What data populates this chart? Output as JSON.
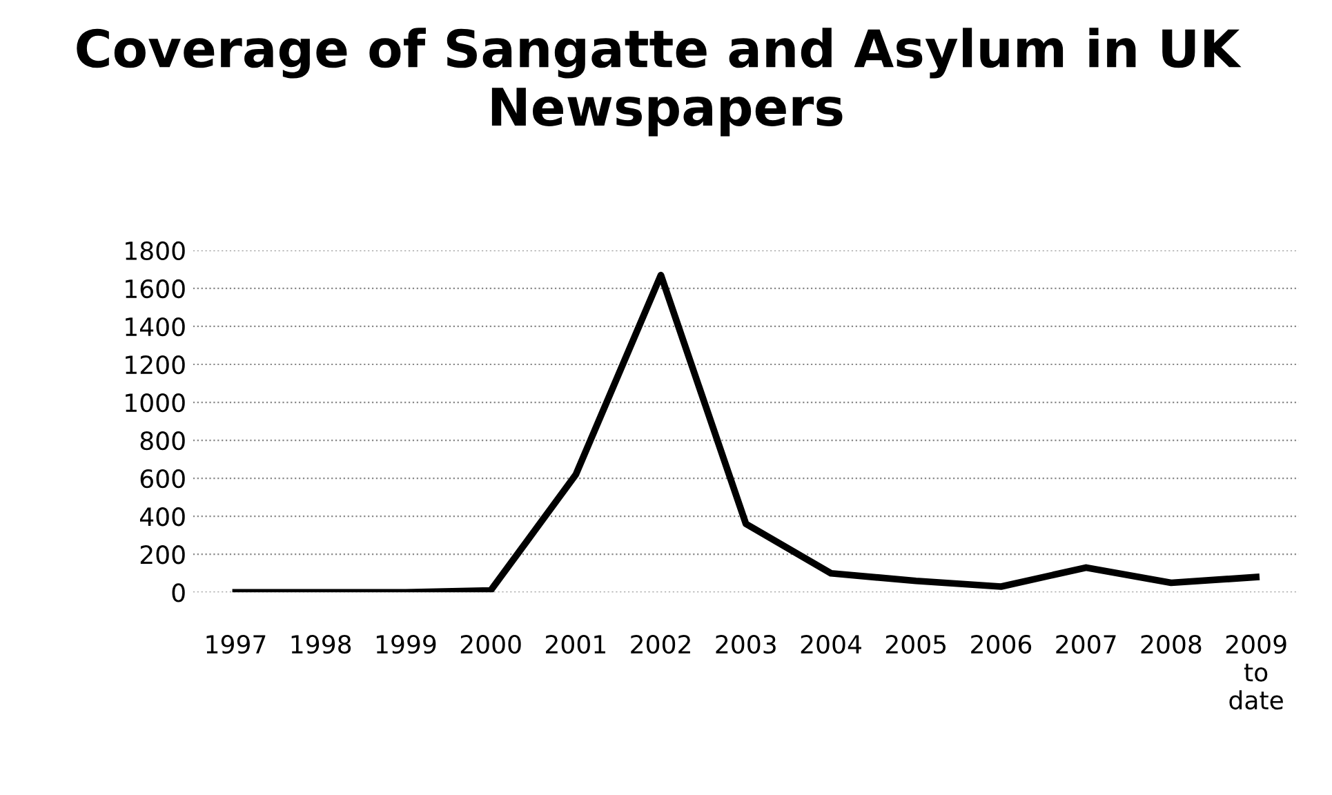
{
  "chart_data": {
    "type": "line",
    "title": "Coverage of Sangatte and Asylum in UK  Newspapers",
    "categories": [
      "1997",
      "1998",
      "1999",
      "2000",
      "2001",
      "2002",
      "2003",
      "2004",
      "2005",
      "2006",
      "2007",
      "2008",
      "2009\nto\ndate"
    ],
    "series": [
      {
        "color": "#000000",
        "values": [
          0,
          0,
          0,
          10,
          620,
          1670,
          360,
          100,
          60,
          30,
          130,
          50,
          80
        ]
      }
    ],
    "ylim": [
      0,
      1800
    ],
    "yticks": [
      0,
      200,
      400,
      600,
      800,
      1000,
      1200,
      1400,
      1600,
      1800
    ],
    "grid": "y",
    "legend": false,
    "marker": "none",
    "line_style": "solid"
  }
}
